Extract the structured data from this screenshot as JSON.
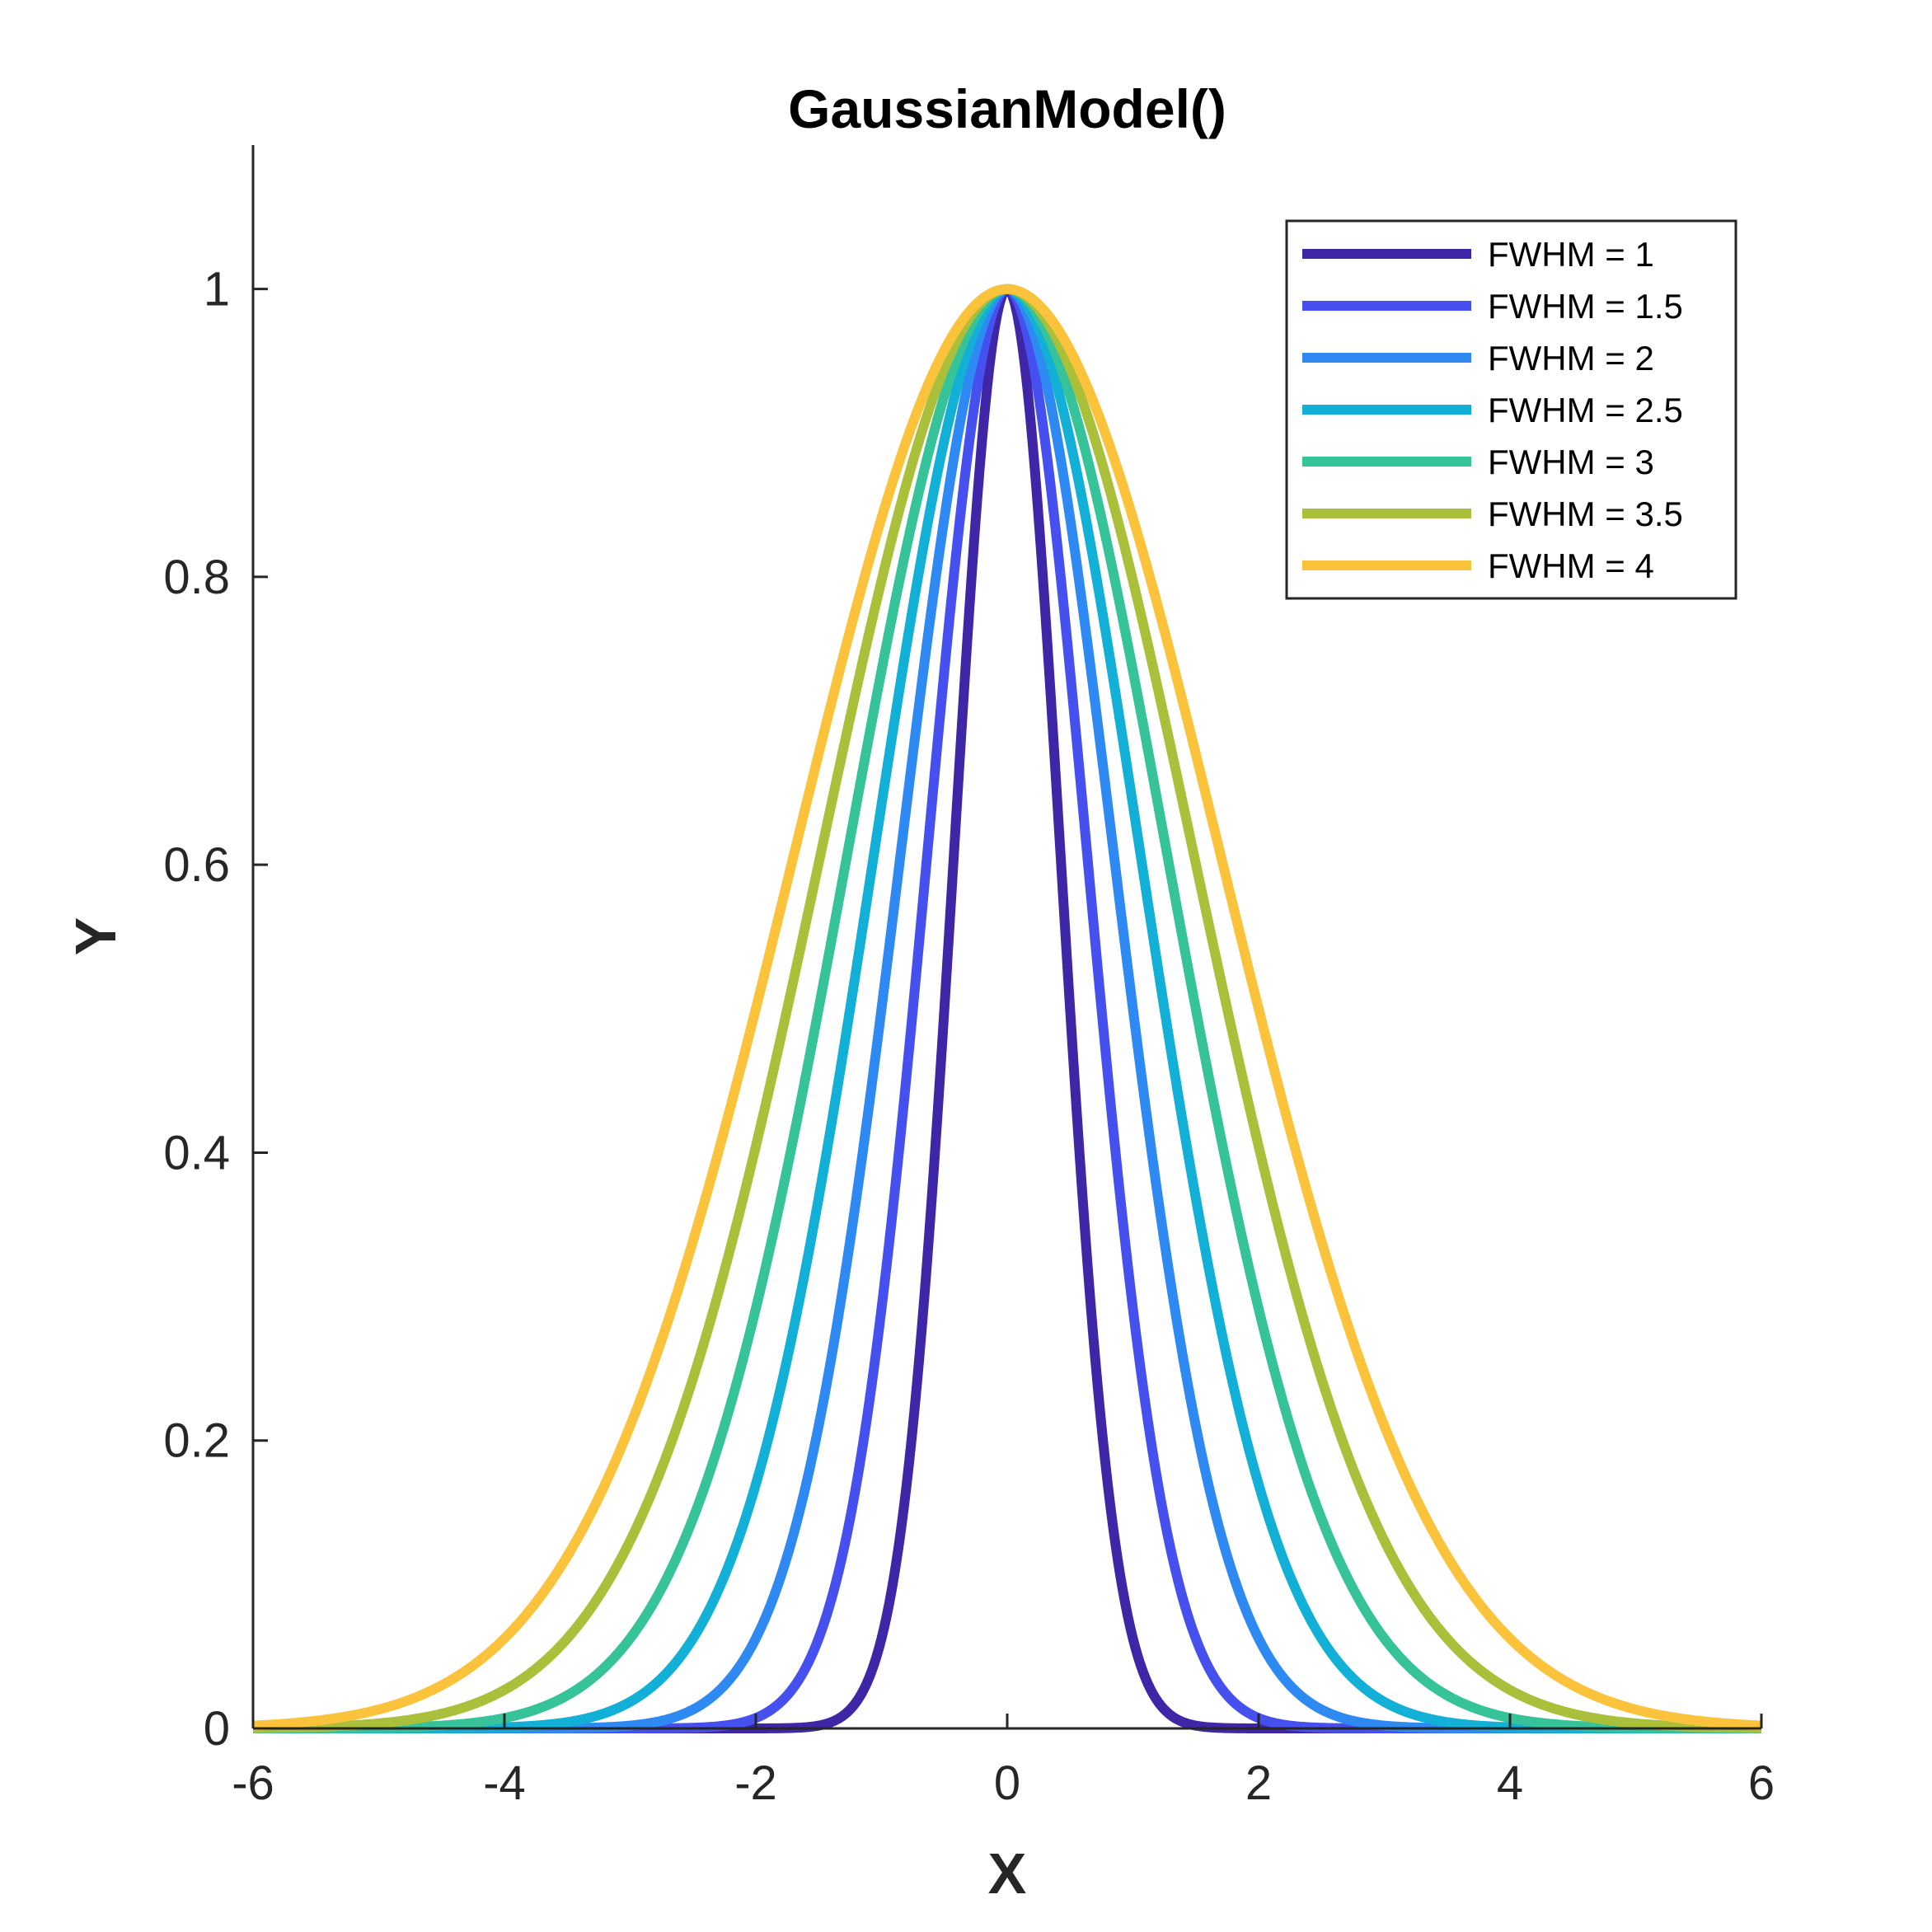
{
  "chart_data": {
    "type": "line",
    "title": "GaussianModel()",
    "xlabel": "X",
    "ylabel": "Y",
    "xlim": [
      -6,
      6
    ],
    "ylim": [
      0,
      1.1
    ],
    "xticks": [
      -6,
      -4,
      -2,
      0,
      2,
      4,
      6
    ],
    "xtick_labels": [
      "-6",
      "-4",
      "-2",
      "0",
      "2",
      "4",
      "6"
    ],
    "yticks": [
      0,
      0.2,
      0.4,
      0.6,
      0.8,
      1
    ],
    "ytick_labels": [
      "0",
      "0.2",
      "0.4",
      "0.6",
      "0.8",
      "1"
    ],
    "grid": false,
    "legend_position": "top-right",
    "model": "exp(-4*ln(2)*x^2/FWHM^2)",
    "x_range": [
      -6,
      6
    ],
    "series": [
      {
        "name": "FWHM = 1",
        "fwhm": 1,
        "color": "#3f26a6"
      },
      {
        "name": "FWHM = 1.5",
        "fwhm": 1.5,
        "color": "#4550ee"
      },
      {
        "name": "FWHM = 2",
        "fwhm": 2,
        "color": "#2e8af2"
      },
      {
        "name": "FWHM = 2.5",
        "fwhm": 2.5,
        "color": "#12b0d6"
      },
      {
        "name": "FWHM = 3",
        "fwhm": 3,
        "color": "#36c39a"
      },
      {
        "name": "FWHM = 3.5",
        "fwhm": 3.5,
        "color": "#aabf3a"
      },
      {
        "name": "FWHM = 4",
        "fwhm": 4,
        "color": "#fbc23c"
      }
    ]
  }
}
